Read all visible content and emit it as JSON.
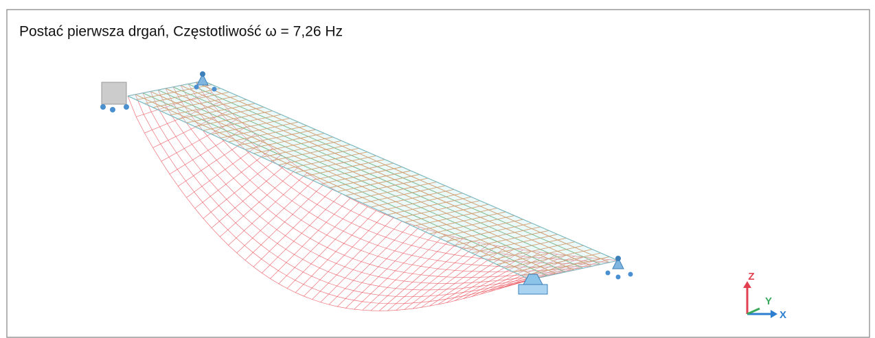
{
  "title": "Postać pierwsza drgań, Częstotliwość ω = 7,26 Hz",
  "axes": {
    "z": "Z",
    "y": "Y",
    "x": "X"
  }
}
